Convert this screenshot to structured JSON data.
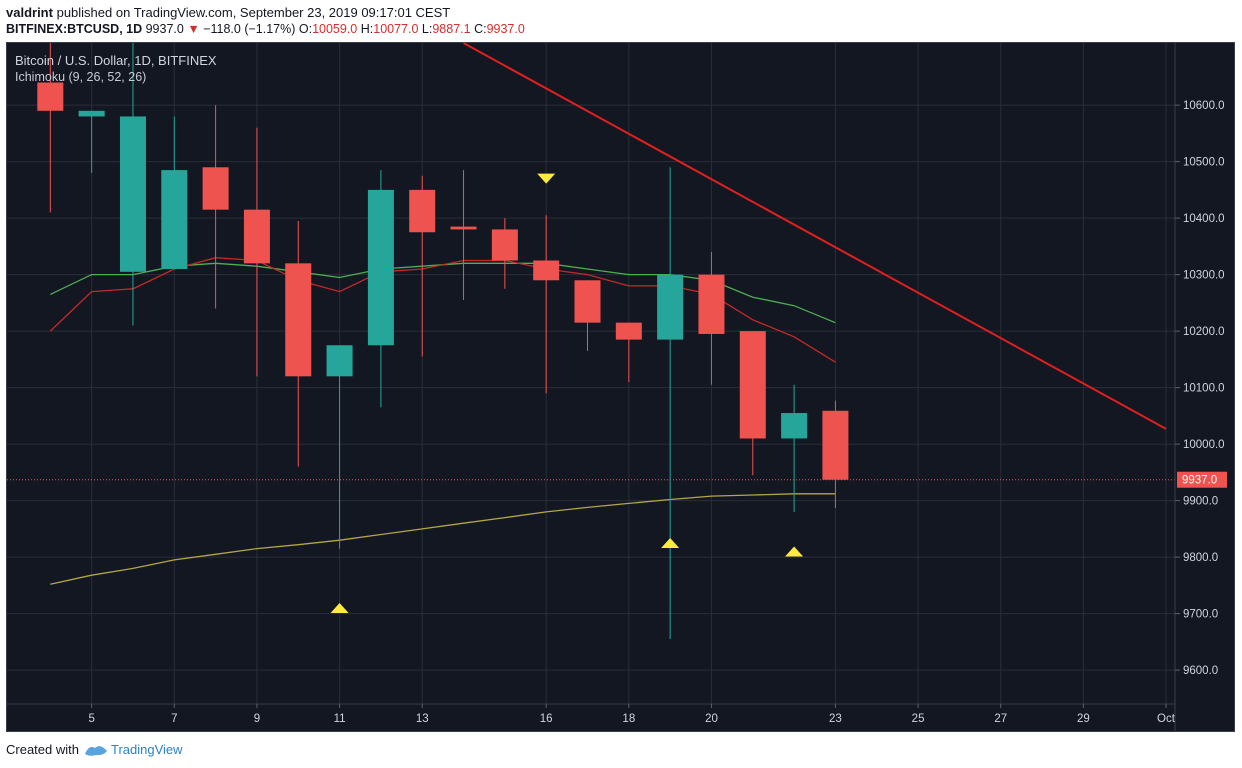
{
  "header": {
    "author": "valdrint",
    "published_text": "published on TradingView.com, September 23, 2019 09:17:01 CEST",
    "symbol": "BITFINEX:BTCUSD, 1D",
    "last": "9937.0",
    "change_arrow": "▼",
    "change": "−118.0 (−1.17%)",
    "o_label": "O:",
    "o_value": "10059.0",
    "h_label": "H:",
    "h_value": "10077.0",
    "l_label": "L:",
    "l_value": "9887.1",
    "c_label": "C:",
    "c_value": "9937.0"
  },
  "legend": {
    "title": "Bitcoin / U.S. Dollar, 1D, BITFINEX",
    "indicator": "Ichimoku (9, 26, 52, 26)"
  },
  "footer": {
    "created_with": "Created with",
    "brand": "TradingView",
    "logo_icon": "tradingview-logo-icon"
  },
  "colors": {
    "background": "#131722",
    "grid": "#2a2e39",
    "up": "#26a69a",
    "down": "#ef5350",
    "trendline": "#e01f1f",
    "conversion": "#c62828",
    "base": "#4caf50",
    "lagging": "#b5a642",
    "marker": "#ffeb3b",
    "price_line": "#ef5350",
    "axis_text": "#d1d4dc"
  },
  "chart_data": {
    "type": "candlestick",
    "x_dates": [
      "2019-09-04",
      "2019-09-05",
      "2019-09-06",
      "2019-09-07",
      "2019-09-08",
      "2019-09-09",
      "2019-09-10",
      "2019-09-11",
      "2019-09-12",
      "2019-09-13",
      "2019-09-14",
      "2019-09-15",
      "2019-09-16",
      "2019-09-17",
      "2019-09-18",
      "2019-09-19",
      "2019-09-20",
      "2019-09-21",
      "2019-09-22",
      "2019-09-23"
    ],
    "x_tick_labels": [
      {
        "date": "2019-09-05",
        "label": "5"
      },
      {
        "date": "2019-09-07",
        "label": "7"
      },
      {
        "date": "2019-09-09",
        "label": "9"
      },
      {
        "date": "2019-09-11",
        "label": "11"
      },
      {
        "date": "2019-09-13",
        "label": "13"
      },
      {
        "date": "2019-09-16",
        "label": "16"
      },
      {
        "date": "2019-09-18",
        "label": "18"
      },
      {
        "date": "2019-09-20",
        "label": "20"
      },
      {
        "date": "2019-09-23",
        "label": "23"
      },
      {
        "date": "2019-09-25",
        "label": "25"
      },
      {
        "date": "2019-09-27",
        "label": "27"
      },
      {
        "date": "2019-09-29",
        "label": "29"
      },
      {
        "date": "2019-10-01",
        "label": "Oct"
      }
    ],
    "x_range": [
      "2019-09-03",
      "2019-10-01"
    ],
    "y_ticks": [
      10600,
      10500,
      10400,
      10300,
      10200,
      10100,
      10000,
      9900,
      9800,
      9700,
      9600
    ],
    "y_tick_labels": [
      "10600.0",
      "10500.0",
      "10400.0",
      "10300.0",
      "10200.0",
      "10100.0",
      "10000.0",
      "9900.0",
      "9800.0",
      "9700.0",
      "9600.0"
    ],
    "ylim": [
      9540,
      10710
    ],
    "ohlc": [
      [
        10640,
        10710,
        10410,
        10590
      ],
      [
        10580,
        10590,
        10480,
        10590
      ],
      [
        10305,
        10710,
        10210,
        10580
      ],
      [
        10310,
        10580,
        10310,
        10485
      ],
      [
        10490,
        10600,
        10240,
        10415
      ],
      [
        10415,
        10560,
        10120,
        10320
      ],
      [
        10320,
        10395,
        9960,
        10120
      ],
      [
        10120,
        10175,
        9815,
        10175
      ],
      [
        10175,
        10485,
        10065,
        10450
      ],
      [
        10450,
        10475,
        10155,
        10375
      ],
      [
        10385,
        10485,
        10255,
        10380
      ],
      [
        10380,
        10400,
        10275,
        10325
      ],
      [
        10325,
        10405,
        10090,
        10290
      ],
      [
        10290,
        10290,
        10165,
        10215
      ],
      [
        10215,
        10215,
        10110,
        10185
      ],
      [
        10185,
        10490,
        9655,
        10300
      ],
      [
        10300,
        10340,
        10105,
        10195
      ],
      [
        10200,
        10200,
        9945,
        10010
      ],
      [
        10010,
        10105,
        9880,
        10055
      ],
      [
        10059,
        10077,
        9887.1,
        9937
      ]
    ],
    "last_price": 9937.0,
    "last_price_label": "9937.0",
    "ichimoku": {
      "conversion_line": [
        [
          0,
          10200
        ],
        [
          1,
          10270
        ],
        [
          2,
          10275
        ],
        [
          3,
          10310
        ],
        [
          4,
          10330
        ],
        [
          5,
          10325
        ],
        [
          6,
          10290
        ],
        [
          7,
          10270
        ],
        [
          8,
          10305
        ],
        [
          9,
          10310
        ],
        [
          10,
          10325
        ],
        [
          11,
          10325
        ],
        [
          12,
          10310
        ],
        [
          13,
          10300
        ],
        [
          14,
          10280
        ],
        [
          15,
          10280
        ],
        [
          16,
          10265
        ],
        [
          17,
          10220
        ],
        [
          18,
          10190
        ],
        [
          19,
          10145
        ]
      ],
      "base_line": [
        [
          0,
          10265
        ],
        [
          1,
          10300
        ],
        [
          2,
          10300
        ],
        [
          3,
          10315
        ],
        [
          4,
          10320
        ],
        [
          5,
          10315
        ],
        [
          6,
          10305
        ],
        [
          7,
          10295
        ],
        [
          8,
          10310
        ],
        [
          9,
          10315
        ],
        [
          10,
          10320
        ],
        [
          11,
          10320
        ],
        [
          12,
          10320
        ],
        [
          13,
          10310
        ],
        [
          14,
          10300
        ],
        [
          15,
          10300
        ],
        [
          16,
          10290
        ],
        [
          17,
          10260
        ],
        [
          18,
          10245
        ],
        [
          19,
          10215
        ]
      ],
      "lagging_span": [
        [
          0,
          9752
        ],
        [
          1,
          9768
        ],
        [
          2,
          9780
        ],
        [
          3,
          9795
        ],
        [
          4,
          9805
        ],
        [
          5,
          9815
        ],
        [
          6,
          9822
        ],
        [
          7,
          9830
        ],
        [
          8,
          9840
        ],
        [
          9,
          9850
        ],
        [
          10,
          9860
        ],
        [
          11,
          9870
        ],
        [
          12,
          9880
        ],
        [
          13,
          9888
        ],
        [
          14,
          9895
        ],
        [
          15,
          9902
        ],
        [
          16,
          9908
        ],
        [
          17,
          9910
        ],
        [
          18,
          9912
        ],
        [
          19,
          9912
        ]
      ]
    },
    "trendline": {
      "from": [
        "2019-09-14",
        10710
      ],
      "to": [
        "2019-10-01",
        10027
      ]
    },
    "markers": [
      {
        "date": "2019-09-11",
        "price": 9710,
        "direction": "up"
      },
      {
        "date": "2019-09-16",
        "price": 10470,
        "direction": "down"
      },
      {
        "date": "2019-09-19",
        "price": 9825,
        "direction": "up"
      },
      {
        "date": "2019-09-22",
        "price": 9810,
        "direction": "up"
      }
    ],
    "grid": true,
    "price_axis_position": "right"
  }
}
